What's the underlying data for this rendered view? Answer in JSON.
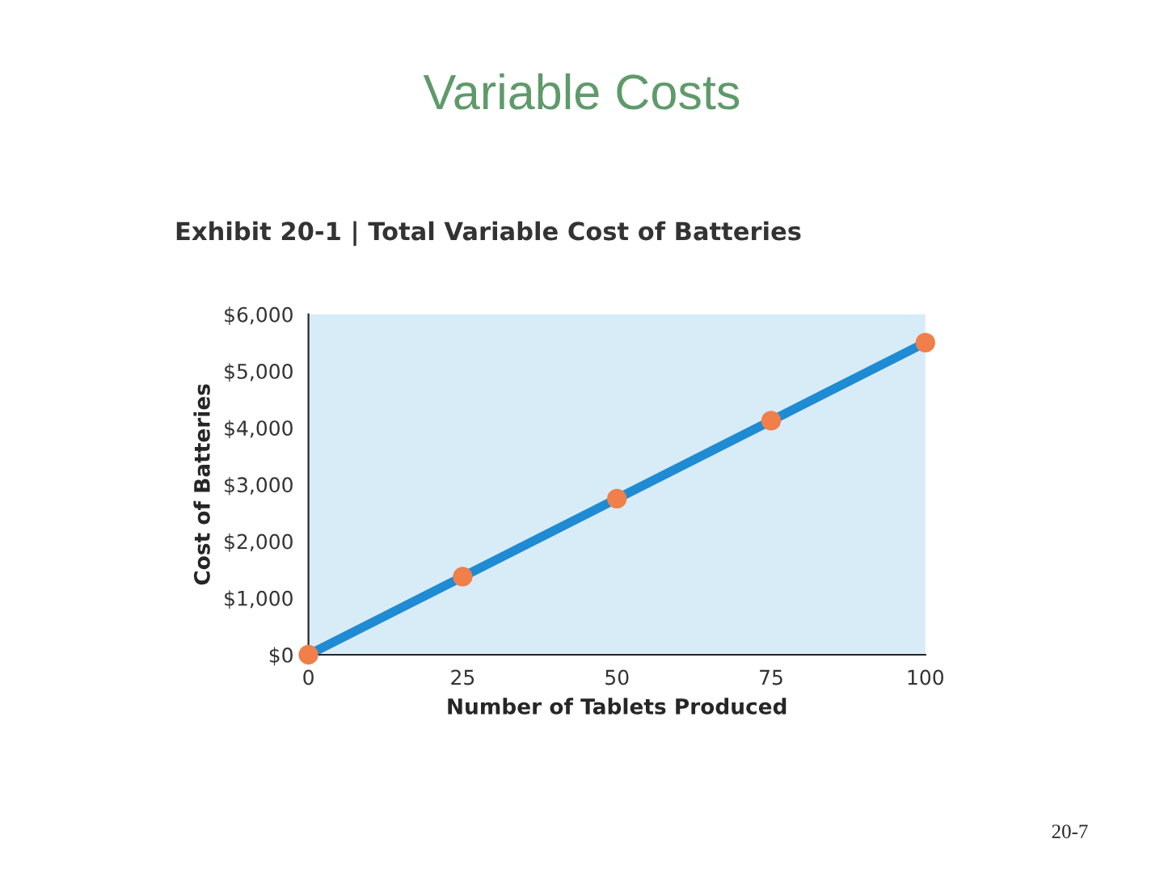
{
  "chart_data": {
    "type": "line",
    "title": "Variable Costs",
    "subtitle": "Exhibit 20-1 | Total Variable Cost of Batteries",
    "xlabel": "Number of Tablets Produced",
    "ylabel": "Cost of Batteries",
    "x": [
      0,
      25,
      50,
      75,
      100
    ],
    "series": [
      {
        "color": "#1e8bd3",
        "colors": [
          "#f07f4a",
          "#f07f4a",
          "#f07f4a",
          "#f07f4a",
          "#f07f4a"
        ],
        "values": [
          0,
          1375,
          2750,
          4125,
          5500
        ]
      }
    ],
    "xlim": [
      0,
      100
    ],
    "xticks": [
      0,
      25,
      50,
      75,
      100
    ],
    "ylim": [
      0,
      6000
    ],
    "yticks": [
      {
        "value": 0,
        "label": "$0"
      },
      {
        "value": 1000,
        "label": "$1,000"
      },
      {
        "value": 2000,
        "label": "$2,000"
      },
      {
        "value": 3000,
        "label": "$3,000"
      },
      {
        "value": 4000,
        "label": "$4,000"
      },
      {
        "value": 5000,
        "label": "$5,000"
      },
      {
        "value": 6000,
        "label": "$6,000"
      }
    ],
    "marker": "circle",
    "line_style": "solid",
    "grid": false,
    "legend": false,
    "annotations": [
      "20-7"
    ]
  }
}
